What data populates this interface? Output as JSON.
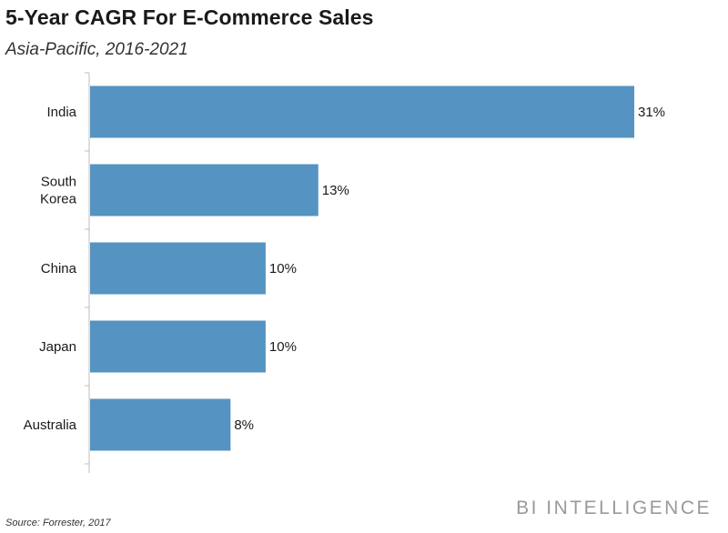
{
  "chart_data": {
    "type": "bar",
    "orientation": "horizontal",
    "title": "5-Year CAGR For E-Commerce Sales",
    "subtitle": "Asia-Pacific, 2016-2021",
    "categories": [
      [
        "India"
      ],
      [
        "South",
        "Korea"
      ],
      [
        "China"
      ],
      [
        "Japan"
      ],
      [
        "Australia"
      ]
    ],
    "values": [
      31,
      13,
      10,
      10,
      8
    ],
    "value_labels": [
      "31%",
      "13%",
      "10%",
      "10%",
      "8%"
    ],
    "xlim": [
      0,
      31
    ],
    "bar_color": "#5593c2",
    "grid": false,
    "legend": "none"
  },
  "footer": {
    "brand": "BI INTELLIGENCE",
    "source": "Source: Forrester, 2017"
  }
}
